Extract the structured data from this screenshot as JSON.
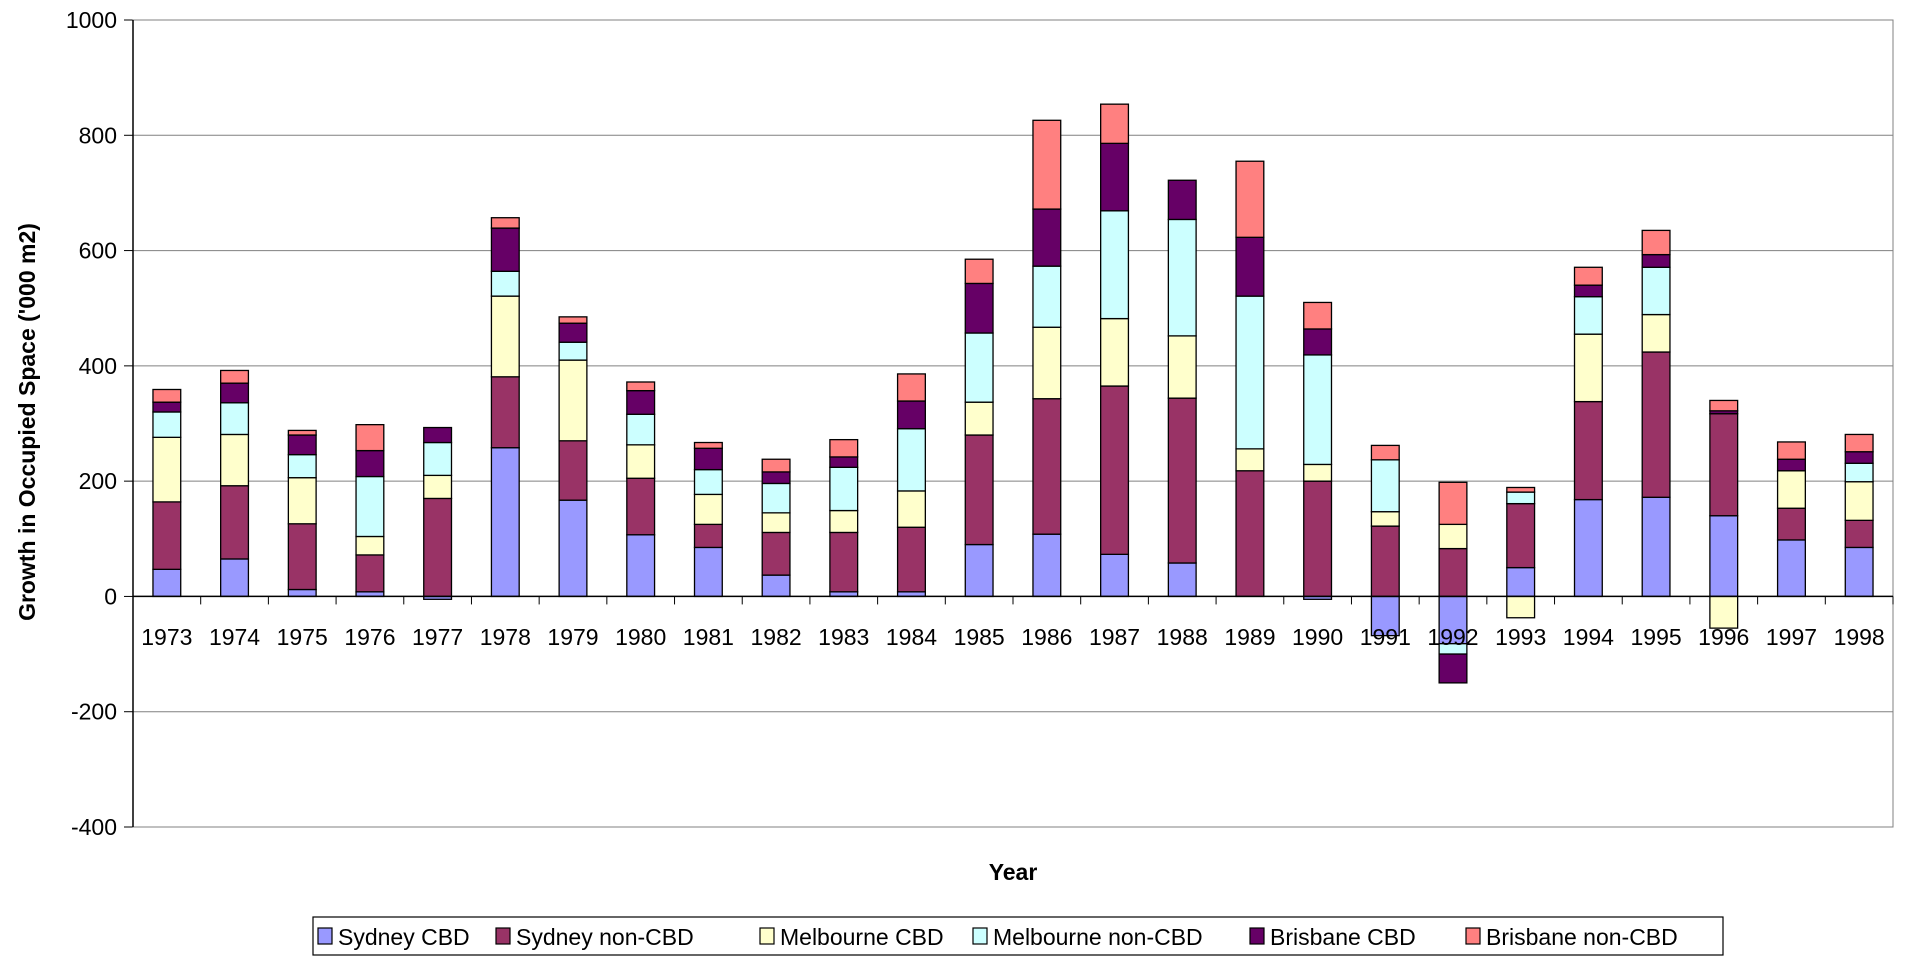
{
  "chart_data": {
    "type": "bar",
    "stacked": true,
    "title": "",
    "xlabel": "Year",
    "ylabel": "Growth in Occupied Space ('000 m2)",
    "ylim": [
      -400,
      1000
    ],
    "yticks": [
      -400,
      -200,
      0,
      200,
      400,
      600,
      800,
      1000
    ],
    "grid": true,
    "legend_position": "bottom",
    "categories": [
      "1973",
      "1974",
      "1975",
      "1976",
      "1977",
      "1978",
      "1979",
      "1980",
      "1981",
      "1982",
      "1983",
      "1984",
      "1985",
      "1986",
      "1987",
      "1988",
      "1989",
      "1990",
      "1991",
      "1992",
      "1993",
      "1994",
      "1995",
      "1996",
      "1997",
      "1998"
    ],
    "series": [
      {
        "name": "Sydney CBD",
        "color": "#9999FF",
        "values": [
          47,
          65,
          12,
          8,
          -5,
          258,
          167,
          107,
          85,
          37,
          8,
          8,
          90,
          108,
          73,
          58,
          0,
          -5,
          -68,
          -82,
          50,
          168,
          172,
          140,
          98,
          85
        ]
      },
      {
        "name": "Sydney non-CBD",
        "color": "#993366",
        "values": [
          117,
          127,
          114,
          64,
          170,
          123,
          103,
          98,
          40,
          74,
          103,
          112,
          190,
          235,
          292,
          286,
          218,
          200,
          122,
          83,
          111,
          170,
          252,
          177,
          55,
          47
        ]
      },
      {
        "name": "Melbourne CBD",
        "color": "#FFFFCC",
        "values": [
          112,
          89,
          80,
          32,
          40,
          140,
          140,
          58,
          52,
          34,
          38,
          63,
          57,
          124,
          117,
          108,
          38,
          29,
          25,
          42,
          -37,
          117,
          65,
          -55,
          65,
          67
        ]
      },
      {
        "name": "Melbourne non-CBD",
        "color": "#CCFFFF",
        "values": [
          44,
          55,
          40,
          104,
          57,
          43,
          31,
          53,
          43,
          51,
          75,
          108,
          120,
          106,
          187,
          202,
          265,
          190,
          90,
          -18,
          20,
          65,
          82,
          0,
          0,
          32
        ]
      },
      {
        "name": "Brisbane CBD",
        "color": "#660066",
        "values": [
          17,
          34,
          34,
          45,
          26,
          75,
          33,
          41,
          37,
          20,
          18,
          48,
          86,
          99,
          117,
          68,
          102,
          45,
          0,
          -50,
          0,
          20,
          22,
          5,
          20,
          20
        ]
      },
      {
        "name": "Brisbane non-CBD",
        "color": "#FF8080",
        "values": [
          22,
          22,
          8,
          45,
          0,
          18,
          11,
          15,
          10,
          22,
          30,
          47,
          42,
          154,
          68,
          0,
          132,
          46,
          25,
          73,
          8,
          31,
          42,
          18,
          30,
          30
        ]
      }
    ]
  }
}
